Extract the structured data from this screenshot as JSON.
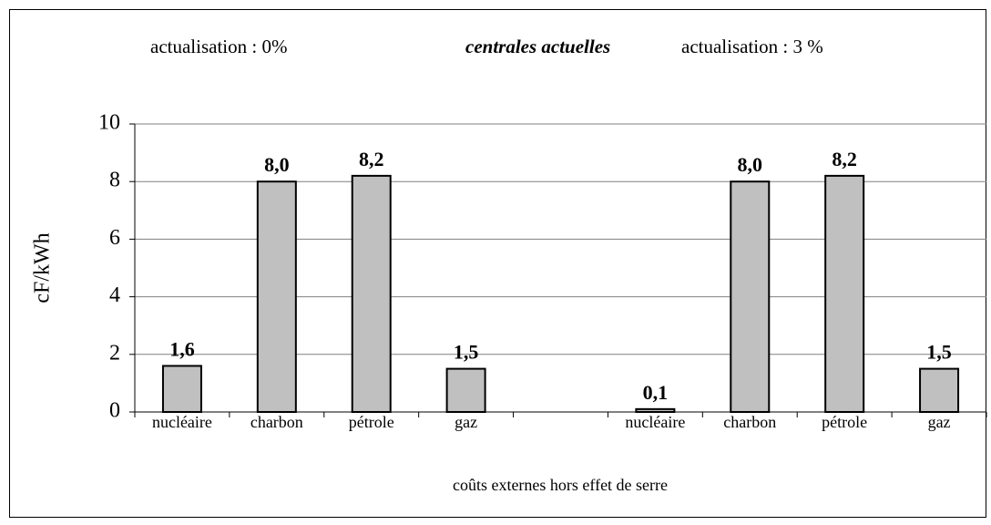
{
  "chart_data": {
    "type": "bar",
    "annotations": [
      "actualisation : 0%",
      "centrales actuelles",
      "actualisation : 3 %"
    ],
    "ylabel": "cF/kWh",
    "xlabel": "coûts externes hors effet de serre",
    "categories": [
      "nucléaire",
      "charbon",
      "pétrole",
      "gaz",
      null,
      "nucléaire",
      "charbon",
      "pétrole",
      "gaz"
    ],
    "values": [
      1.6,
      8.0,
      8.2,
      1.5,
      null,
      0.1,
      8.0,
      8.2,
      1.5
    ],
    "value_labels": [
      "1,6",
      "8,0",
      "8,2",
      "1,5",
      null,
      "0,1",
      "8,0",
      "8,2",
      "1,5"
    ],
    "color": "#c0c0c0",
    "ylim": [
      0,
      10
    ],
    "yticks": [
      0,
      2,
      4,
      6,
      8,
      10
    ],
    "grid": true
  }
}
